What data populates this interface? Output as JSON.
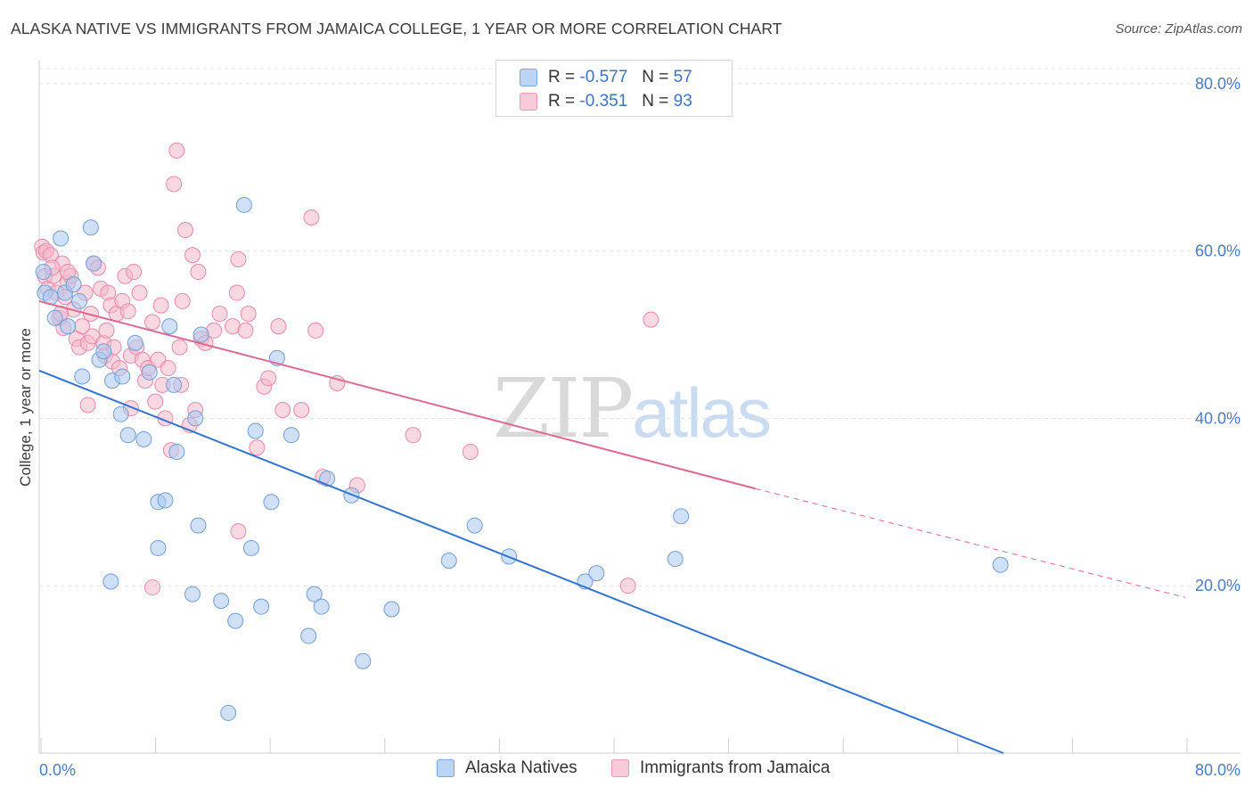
{
  "title": "ALASKA NATIVE VS IMMIGRANTS FROM JAMAICA COLLEGE, 1 YEAR OR MORE CORRELATION CHART",
  "source": "Source: ZipAtlas.com",
  "watermark": {
    "zip": "ZIP",
    "atlas": "atlas"
  },
  "legend": {
    "rows": [
      {
        "r_label": "R =",
        "r_value": "-0.577",
        "n_label": "N =",
        "n_value": "57"
      },
      {
        "r_label": "R =",
        "r_value": "-0.351",
        "n_label": "N =",
        "n_value": "93"
      }
    ]
  },
  "colors": {
    "blue_fill": "#a9c8f0",
    "blue_stroke": "#6f9fdb",
    "blue_line": "#2f74d0",
    "pink_fill": "#f6b8cb",
    "pink_stroke": "#ea8aa8",
    "pink_line": "#e06890",
    "grid": "#e3e3e3",
    "tick_label": "#4a7cc7"
  },
  "chart_data": {
    "type": "scatter",
    "title": "ALASKA NATIVE VS IMMIGRANTS FROM JAMAICA COLLEGE, 1 YEAR OR MORE CORRELATION CHART",
    "xlabel": "",
    "ylabel": "College, 1 year or more",
    "xlim": [
      0,
      80
    ],
    "ylim": [
      0,
      82
    ],
    "x_tick_labels": [
      "0.0%",
      "80.0%"
    ],
    "y_ticks": [
      20,
      40,
      60,
      80
    ],
    "y_tick_labels": [
      "20.0%",
      "40.0%",
      "60.0%",
      "80.0%"
    ],
    "grid": true,
    "legend_position": "bottom",
    "series": [
      {
        "name": "Alaska Natives",
        "color": "#a9c8f0",
        "points": [
          [
            0.3,
            57.5
          ],
          [
            0.4,
            55.0
          ],
          [
            0.8,
            54.5
          ],
          [
            1.1,
            52.0
          ],
          [
            1.5,
            61.5
          ],
          [
            1.8,
            55.0
          ],
          [
            2.0,
            51.0
          ],
          [
            2.4,
            56.0
          ],
          [
            2.8,
            54.0
          ],
          [
            3.6,
            62.8
          ],
          [
            3.8,
            58.5
          ],
          [
            4.2,
            47.0
          ],
          [
            4.5,
            48.0
          ],
          [
            5.1,
            44.5
          ],
          [
            5.7,
            40.5
          ],
          [
            5.8,
            45.0
          ],
          [
            6.2,
            38.0
          ],
          [
            6.7,
            49.0
          ],
          [
            7.3,
            37.5
          ],
          [
            7.7,
            45.5
          ],
          [
            8.3,
            24.5
          ],
          [
            8.3,
            30.0
          ],
          [
            8.8,
            30.2
          ],
          [
            9.1,
            51.0
          ],
          [
            9.4,
            44.0
          ],
          [
            9.6,
            36.0
          ],
          [
            10.7,
            19.0
          ],
          [
            10.9,
            40.0
          ],
          [
            11.1,
            27.2
          ],
          [
            11.3,
            50.0
          ],
          [
            12.7,
            18.2
          ],
          [
            13.2,
            4.8
          ],
          [
            13.7,
            15.8
          ],
          [
            14.3,
            65.5
          ],
          [
            14.8,
            24.5
          ],
          [
            15.1,
            38.5
          ],
          [
            15.5,
            17.5
          ],
          [
            16.2,
            30.0
          ],
          [
            16.6,
            47.2
          ],
          [
            17.6,
            38.0
          ],
          [
            18.8,
            14.0
          ],
          [
            19.2,
            19.0
          ],
          [
            19.7,
            17.5
          ],
          [
            20.1,
            32.8
          ],
          [
            21.8,
            30.8
          ],
          [
            22.6,
            11.0
          ],
          [
            24.6,
            17.2
          ],
          [
            28.6,
            23.0
          ],
          [
            30.4,
            27.2
          ],
          [
            32.8,
            23.5
          ],
          [
            38.1,
            20.5
          ],
          [
            38.9,
            21.5
          ],
          [
            44.4,
            23.2
          ],
          [
            44.8,
            28.3
          ],
          [
            67.1,
            22.5
          ],
          [
            3.0,
            45.0
          ],
          [
            5.0,
            20.5
          ]
        ],
        "trend": {
          "x1": 0,
          "y1": 45.7,
          "x2": 67.3,
          "y2": 0
        }
      },
      {
        "name": "Immigrants from Jamaica",
        "color": "#f6b8cb",
        "points": [
          [
            0.2,
            60.5
          ],
          [
            0.3,
            59.8
          ],
          [
            0.4,
            57.0
          ],
          [
            0.5,
            60.0
          ],
          [
            0.6,
            55.5
          ],
          [
            0.8,
            59.5
          ],
          [
            1.0,
            57.0
          ],
          [
            1.2,
            55.0
          ],
          [
            1.4,
            52.0
          ],
          [
            1.6,
            58.5
          ],
          [
            1.7,
            50.8
          ],
          [
            1.8,
            54.5
          ],
          [
            2.0,
            56.2
          ],
          [
            2.2,
            57.0
          ],
          [
            2.4,
            53.0
          ],
          [
            2.6,
            49.5
          ],
          [
            2.8,
            48.5
          ],
          [
            3.0,
            51.0
          ],
          [
            3.2,
            55.0
          ],
          [
            3.4,
            49.0
          ],
          [
            3.6,
            52.5
          ],
          [
            3.7,
            49.8
          ],
          [
            3.8,
            58.5
          ],
          [
            4.1,
            58.0
          ],
          [
            4.3,
            55.5
          ],
          [
            4.5,
            49.0
          ],
          [
            4.6,
            47.5
          ],
          [
            4.8,
            55.0
          ],
          [
            5.0,
            53.5
          ],
          [
            5.1,
            46.8
          ],
          [
            5.2,
            48.5
          ],
          [
            5.4,
            52.5
          ],
          [
            5.6,
            46.0
          ],
          [
            5.8,
            54.0
          ],
          [
            6.0,
            57.0
          ],
          [
            6.2,
            52.8
          ],
          [
            6.4,
            47.5
          ],
          [
            6.6,
            57.5
          ],
          [
            6.8,
            48.5
          ],
          [
            7.0,
            55.0
          ],
          [
            7.2,
            47.0
          ],
          [
            7.4,
            44.5
          ],
          [
            7.6,
            46.0
          ],
          [
            7.9,
            51.5
          ],
          [
            8.1,
            42.0
          ],
          [
            8.3,
            47.0
          ],
          [
            8.5,
            53.5
          ],
          [
            8.6,
            44.0
          ],
          [
            8.8,
            40.0
          ],
          [
            9.0,
            46.0
          ],
          [
            9.2,
            36.2
          ],
          [
            9.4,
            68.0
          ],
          [
            9.6,
            72.0
          ],
          [
            9.8,
            48.5
          ],
          [
            10.0,
            54.0
          ],
          [
            10.2,
            62.5
          ],
          [
            10.5,
            39.2
          ],
          [
            10.7,
            59.5
          ],
          [
            10.9,
            41.0
          ],
          [
            11.1,
            57.5
          ],
          [
            11.3,
            49.5
          ],
          [
            12.2,
            50.5
          ],
          [
            12.6,
            52.5
          ],
          [
            13.5,
            51.0
          ],
          [
            13.8,
            55.0
          ],
          [
            13.9,
            59.0
          ],
          [
            14.4,
            50.5
          ],
          [
            14.6,
            52.5
          ],
          [
            15.2,
            36.5
          ],
          [
            15.7,
            43.8
          ],
          [
            16.0,
            44.8
          ],
          [
            16.7,
            51.0
          ],
          [
            17.0,
            41.0
          ],
          [
            18.3,
            41.0
          ],
          [
            19.0,
            64.0
          ],
          [
            19.3,
            50.5
          ],
          [
            19.8,
            33.0
          ],
          [
            20.8,
            44.2
          ],
          [
            22.2,
            32.0
          ],
          [
            26.1,
            38.0
          ],
          [
            30.1,
            36.0
          ],
          [
            41.1,
            20.0
          ],
          [
            42.7,
            51.8
          ],
          [
            1.5,
            52.5
          ],
          [
            6.4,
            41.2
          ],
          [
            3.4,
            41.6
          ],
          [
            7.9,
            19.8
          ],
          [
            13.9,
            26.5
          ],
          [
            4.7,
            50.5
          ],
          [
            2.0,
            57.5
          ],
          [
            0.9,
            58.0
          ],
          [
            11.6,
            49.0
          ],
          [
            9.9,
            44.0
          ]
        ],
        "trend": {
          "x1": 0,
          "y1": 54.0,
          "x2": 50.0,
          "y2": 31.6,
          "dash_to_x": 80.0,
          "dash_to_y": 18.6
        }
      }
    ]
  }
}
